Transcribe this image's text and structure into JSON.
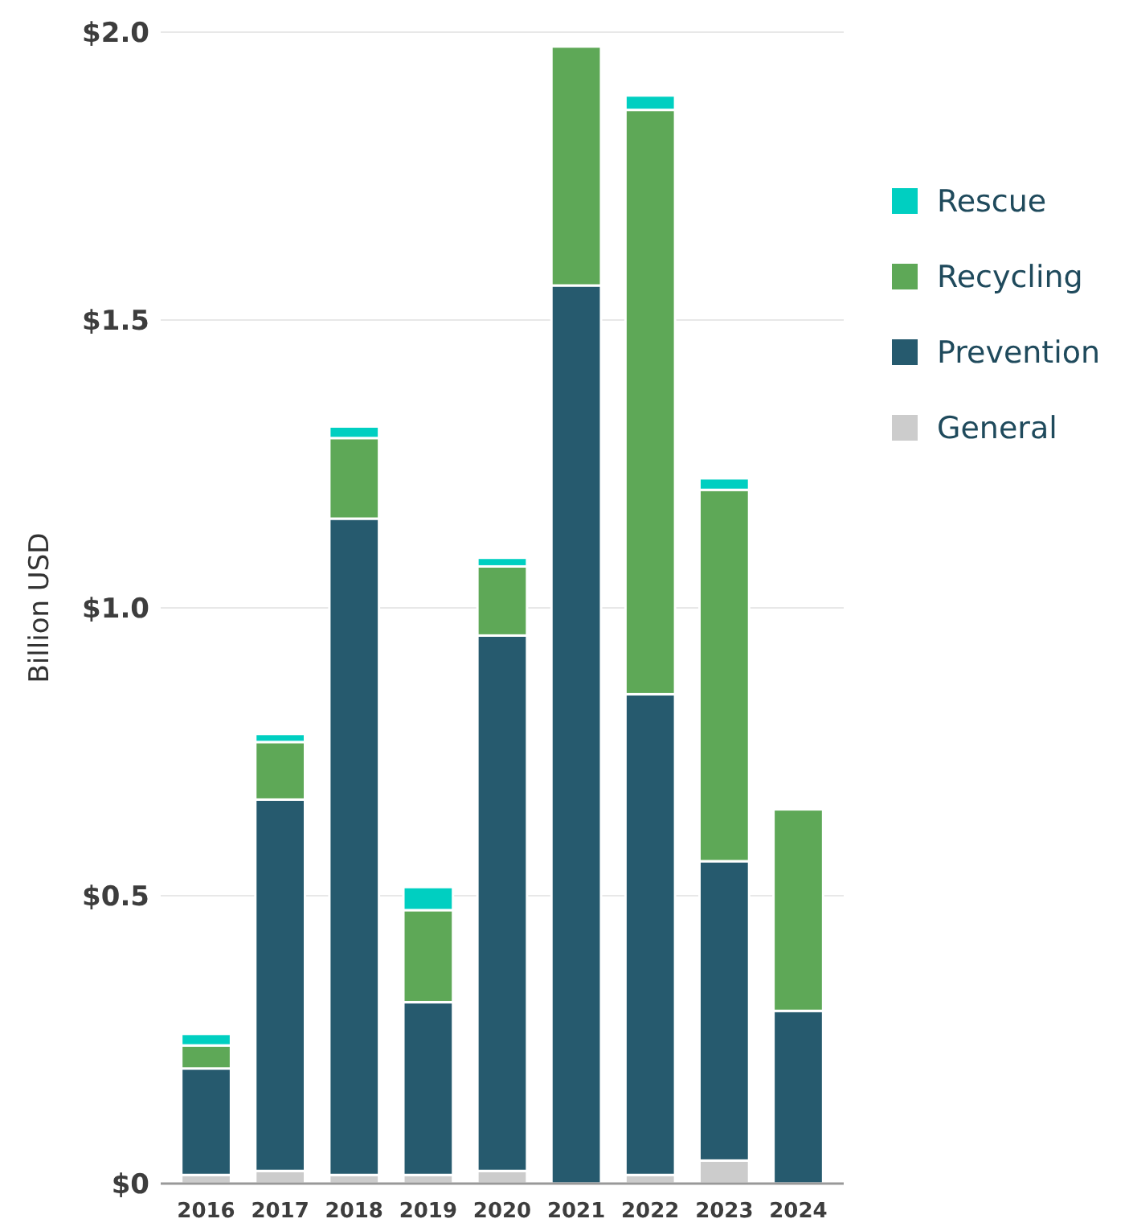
{
  "chart_data": {
    "type": "bar",
    "stacked": true,
    "ylabel": "Billion USD",
    "categories": [
      "2016",
      "2017",
      "2018",
      "2019",
      "2020",
      "2021",
      "2022",
      "2023",
      "2024"
    ],
    "series": [
      {
        "name": "General",
        "color": "#cccccc",
        "values": [
          0.015,
          0.022,
          0.015,
          0.015,
          0.022,
          0,
          0.015,
          0.04,
          0
        ]
      },
      {
        "name": "Prevention",
        "color": "#265a6e",
        "values": [
          0.185,
          0.645,
          1.14,
          0.3,
          0.93,
          1.56,
          0.835,
          0.52,
          0.3
        ]
      },
      {
        "name": "Recycling",
        "color": "#5ea857",
        "values": [
          0.04,
          0.1,
          0.14,
          0.16,
          0.12,
          0.415,
          1.015,
          0.645,
          0.35
        ]
      },
      {
        "name": "Rescue",
        "color": "#00cfc1",
        "values": [
          0.02,
          0.014,
          0.02,
          0.04,
          0.015,
          0,
          0.025,
          0.02,
          0
        ]
      }
    ],
    "ylim": [
      0,
      2
    ],
    "yticks": [
      {
        "value": 0,
        "label": "$0"
      },
      {
        "value": 0.5,
        "label": "$0.5"
      },
      {
        "value": 1,
        "label": "$1.0"
      },
      {
        "value": 1.5,
        "label": "$1.5"
      },
      {
        "value": 2,
        "label": "$2.0"
      }
    ],
    "grid": "y",
    "legend": "right"
  }
}
